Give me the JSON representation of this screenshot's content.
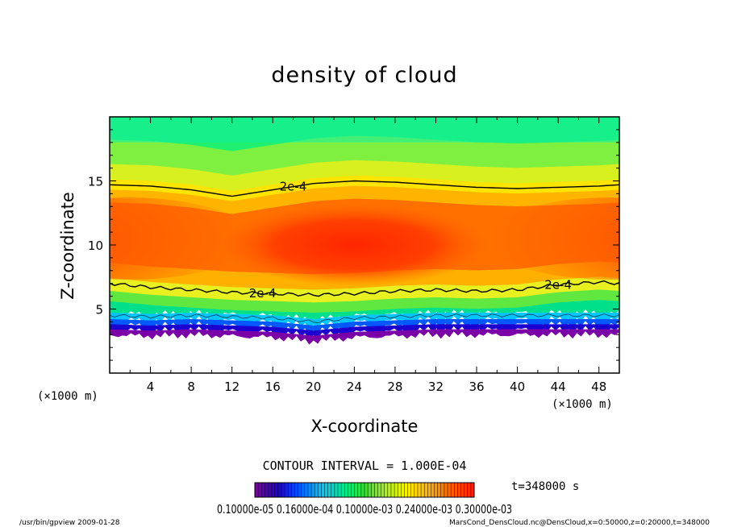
{
  "chart_data": {
    "type": "heatmap",
    "title": "density of cloud",
    "xlabel": "X-coordinate",
    "ylabel": "Z-coordinate",
    "x_unit_left": "(×1000 m)",
    "x_unit_right": "(×1000 m)",
    "xlim": [
      0,
      50
    ],
    "ylim": [
      0,
      20
    ],
    "x_ticks": [
      4,
      8,
      12,
      16,
      20,
      24,
      28,
      32,
      36,
      40,
      44,
      48
    ],
    "x_tick_labels": [
      "4",
      "8",
      "12",
      "16",
      "20",
      "24",
      "28",
      "32",
      "36",
      "40",
      "44",
      "48"
    ],
    "y_ticks": [
      5,
      10,
      15
    ],
    "y_tick_labels": [
      "5",
      "10",
      "15"
    ],
    "contour_label": "2e-4",
    "contour_value": 0.0002,
    "upper_contour": [
      [
        0,
        14.7
      ],
      [
        4,
        14.6
      ],
      [
        8,
        14.3
      ],
      [
        12,
        13.8
      ],
      [
        16,
        14.3
      ],
      [
        20,
        14.8
      ],
      [
        24,
        15.0
      ],
      [
        28,
        14.9
      ],
      [
        32,
        14.7
      ],
      [
        36,
        14.5
      ],
      [
        40,
        14.4
      ],
      [
        44,
        14.5
      ],
      [
        48,
        14.6
      ],
      [
        50,
        14.7
      ]
    ],
    "lower_contour": [
      [
        0,
        7.0
      ],
      [
        4,
        6.7
      ],
      [
        8,
        6.5
      ],
      [
        12,
        6.3
      ],
      [
        16,
        6.2
      ],
      [
        20,
        6.1
      ],
      [
        24,
        6.2
      ],
      [
        28,
        6.4
      ],
      [
        32,
        6.5
      ],
      [
        36,
        6.4
      ],
      [
        40,
        6.5
      ],
      [
        44,
        6.9
      ],
      [
        48,
        7.1
      ],
      [
        50,
        7.0
      ]
    ],
    "cloud_base": [
      [
        0,
        3.0
      ],
      [
        4,
        2.9
      ],
      [
        8,
        3.0
      ],
      [
        12,
        2.9
      ],
      [
        16,
        2.8
      ],
      [
        20,
        2.5
      ],
      [
        24,
        2.8
      ],
      [
        28,
        2.9
      ],
      [
        32,
        3.0
      ],
      [
        36,
        3.0
      ],
      [
        40,
        3.0
      ],
      [
        44,
        3.0
      ],
      [
        48,
        3.0
      ],
      [
        50,
        3.0
      ]
    ],
    "density_max_regions": [
      [
        2,
        10.5
      ],
      [
        24,
        10.0
      ],
      [
        49,
        10.5
      ]
    ],
    "colormap": [
      "#7a00a8",
      "#1c00d0",
      "#0058ff",
      "#00c6ff",
      "#00e890",
      "#30e030",
      "#b0f020",
      "#fff000",
      "#ffb000",
      "#ff6000",
      "#ff2000"
    ],
    "colorbar_labels_text": "0.10000e-05 0.16000e-04 0.10000e-03 0.24000e-03 0.30000e-03",
    "contour_interval_text": "CONTOUR INTERVAL = 1.000E-04",
    "time_text": "t=348000  s"
  },
  "footer": {
    "left": "/usr/bin/gpview  2009-01-28",
    "right": "MarsCond_DensCloud.nc@DensCloud,x=0:50000,z=0:20000,t=348000"
  }
}
